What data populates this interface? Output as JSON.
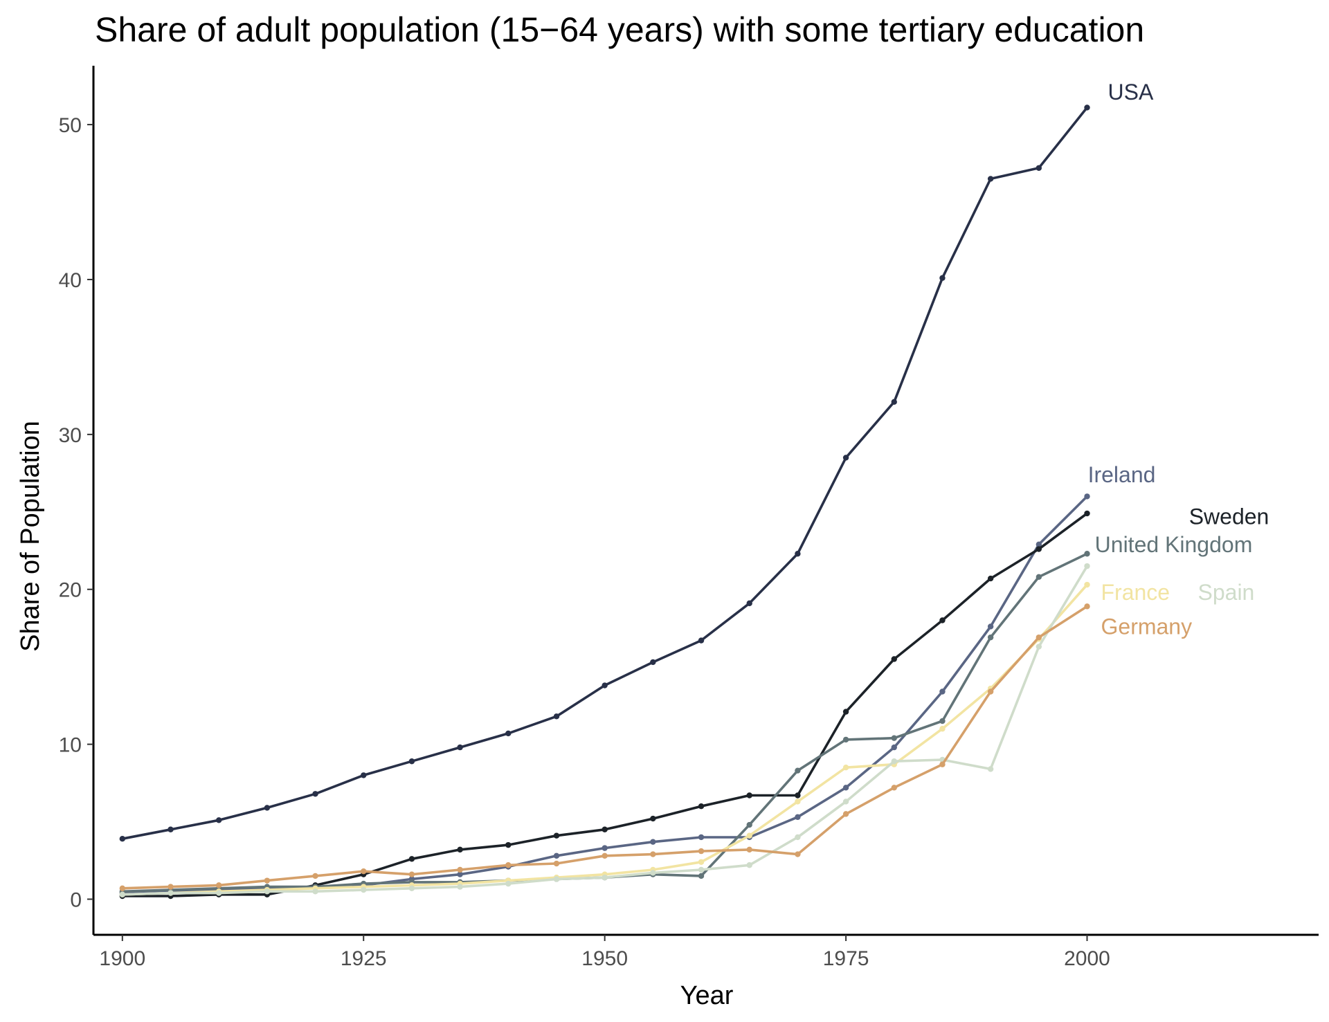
{
  "chart_data": {
    "type": "line",
    "title": "Share of adult population (15−64 years) with some tertiary education",
    "xlabel": "Year",
    "ylabel": "Share of Population",
    "xlim": [
      1897,
      2024
    ],
    "ylim": [
      -2.3,
      53.8
    ],
    "xticks": [
      1900,
      1925,
      1950,
      1975,
      2000
    ],
    "yticks": [
      0,
      10,
      20,
      30,
      40,
      50
    ],
    "grid": false,
    "legend": "direct labels at line ends",
    "x": [
      1900,
      1905,
      1910,
      1915,
      1920,
      1925,
      1930,
      1935,
      1940,
      1945,
      1950,
      1955,
      1960,
      1965,
      1970,
      1975,
      1980,
      1985,
      1990,
      1995,
      2000
    ],
    "series": [
      {
        "name": "USA",
        "color": "#283048",
        "values": [
          3.9,
          4.5,
          5.1,
          5.9,
          6.8,
          8.0,
          8.9,
          9.8,
          10.7,
          11.8,
          13.8,
          15.3,
          16.7,
          19.1,
          22.3,
          28.5,
          32.1,
          40.1,
          46.5,
          47.2,
          51.1
        ]
      },
      {
        "name": "Ireland",
        "color": "#5a6684",
        "values": [
          0.4,
          0.5,
          0.6,
          0.7,
          0.8,
          0.9,
          1.3,
          1.6,
          2.1,
          2.8,
          3.3,
          3.7,
          4.0,
          4.0,
          5.3,
          7.2,
          9.8,
          13.4,
          17.6,
          22.9,
          26.0
        ]
      },
      {
        "name": "Sweden",
        "color": "#1c2228",
        "values": [
          0.2,
          0.2,
          0.3,
          0.3,
          0.9,
          1.6,
          2.6,
          3.2,
          3.5,
          4.1,
          4.5,
          5.2,
          6.0,
          6.7,
          6.7,
          12.1,
          15.5,
          18.0,
          20.7,
          22.6,
          24.9
        ]
      },
      {
        "name": "United Kingdom",
        "color": "#627478",
        "values": [
          0.5,
          0.6,
          0.7,
          0.8,
          0.8,
          1.0,
          1.1,
          1.1,
          1.2,
          1.3,
          1.4,
          1.6,
          1.5,
          4.8,
          8.3,
          10.3,
          10.4,
          11.5,
          16.9,
          20.8,
          22.3
        ]
      },
      {
        "name": "France",
        "color": "#f2e4a2",
        "values": [
          0.3,
          0.4,
          0.5,
          0.6,
          0.7,
          0.8,
          0.9,
          1.0,
          1.2,
          1.4,
          1.6,
          1.9,
          2.4,
          4.1,
          6.3,
          8.5,
          8.7,
          11.0,
          13.6,
          16.8,
          20.3
        ]
      },
      {
        "name": "Spain",
        "color": "#cfdcca",
        "values": [
          0.3,
          0.4,
          0.4,
          0.5,
          0.5,
          0.6,
          0.7,
          0.8,
          1.0,
          1.3,
          1.4,
          1.7,
          1.9,
          2.2,
          4.0,
          6.3,
          8.9,
          9.0,
          8.4,
          16.3,
          21.5
        ]
      },
      {
        "name": "Germany",
        "color": "#d5a06a",
        "values": [
          0.7,
          0.8,
          0.9,
          1.2,
          1.5,
          1.8,
          1.6,
          1.9,
          2.2,
          2.3,
          2.8,
          2.9,
          3.1,
          3.2,
          2.9,
          5.5,
          7.2,
          8.7,
          13.4,
          16.9,
          18.9
        ]
      }
    ]
  }
}
